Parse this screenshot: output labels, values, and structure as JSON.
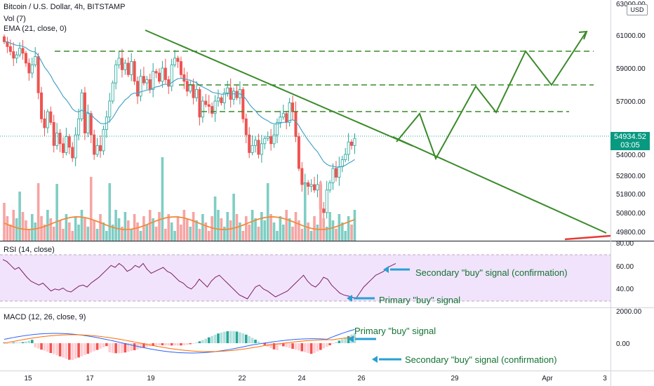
{
  "header": {
    "main_title": "Bitcoin / U.S. Dollar, 4h, BITSTAMP",
    "vol_label": "Vol (7)",
    "ema_label": "EMA (21, close, 0)",
    "rsi_label": "RSI (14, close)",
    "macd_label": "MACD (12, 26, close, 9)"
  },
  "currency_button": "USD",
  "price_badge": {
    "price": "54934.52",
    "countdown": "03:05"
  },
  "colors": {
    "up": "#26a69a",
    "down": "#ef5350",
    "trend": "#3a8a2a",
    "ema": "#4aa3c8",
    "rsi_bg": "#f1e3fb",
    "rsi_line": "#7b1f66",
    "arrow": "#2a9fd6",
    "vol_ma": "#f28a3a"
  },
  "chart_data": {
    "type": "candlestick",
    "ylim": [
      49200,
      63000
    ],
    "price_ticks": [
      "63000.00",
      "61000.00",
      "59000.00",
      "57000.00",
      "54000.00",
      "52800.00",
      "51800.00",
      "50800.00",
      "49800.00"
    ],
    "x_ticks": [
      "15",
      "17",
      "19",
      "22",
      "24",
      "26",
      "29",
      "Apr",
      "3"
    ],
    "rsi": {
      "ticks": [
        "80.00",
        "60.00",
        "40.00"
      ],
      "ylim": [
        20,
        85
      ],
      "band": [
        30,
        70
      ]
    },
    "macd": {
      "ticks": [
        "2000.00",
        "0.00"
      ]
    },
    "annotations": {
      "rsi_secondary": "Secondary \"buy\" signal (confirmation)",
      "rsi_primary": "Primary \"buy\" signal",
      "macd_primary": "Primary \"buy\" signal",
      "macd_secondary": "Secondary \"buy\" signal (confirmation)"
    }
  }
}
